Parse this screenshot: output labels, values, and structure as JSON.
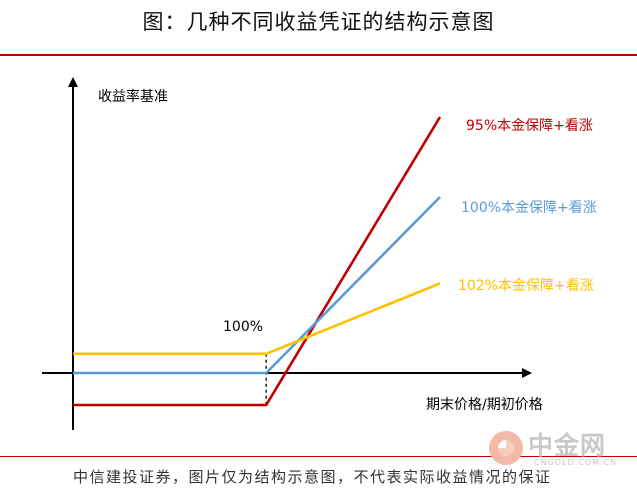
{
  "header": {
    "title": "图：几种不同收益凭证的结构示意图"
  },
  "footer": {
    "text": "中信建投证券，图片仅为结构示意图，不代表实际收益情况的保证"
  },
  "watermark": {
    "text": "中金网",
    "subtext": "CNGOLD.COM.CN"
  },
  "chart_data": {
    "type": "line",
    "title": "",
    "xlabel": "期末价格/期初价格",
    "ylabel": "收益率基准",
    "annotations": [
      {
        "text": "100%",
        "x": 100
      }
    ],
    "xlim": [
      0,
      200
    ],
    "ylim": [
      -20,
      100
    ],
    "series": [
      {
        "name": "95%本金保障+看涨",
        "color": "#c00000",
        "points": [
          [
            0,
            -10
          ],
          [
            100,
            -10
          ],
          [
            190,
            80
          ]
        ]
      },
      {
        "name": "100%本金保障+看涨",
        "color": "#5b9bd5",
        "points": [
          [
            0,
            0
          ],
          [
            100,
            0
          ],
          [
            190,
            55
          ]
        ]
      },
      {
        "name": "102%本金保障+看涨",
        "color": "#ffc000",
        "points": [
          [
            0,
            6
          ],
          [
            100,
            6
          ],
          [
            190,
            28
          ]
        ]
      }
    ]
  }
}
